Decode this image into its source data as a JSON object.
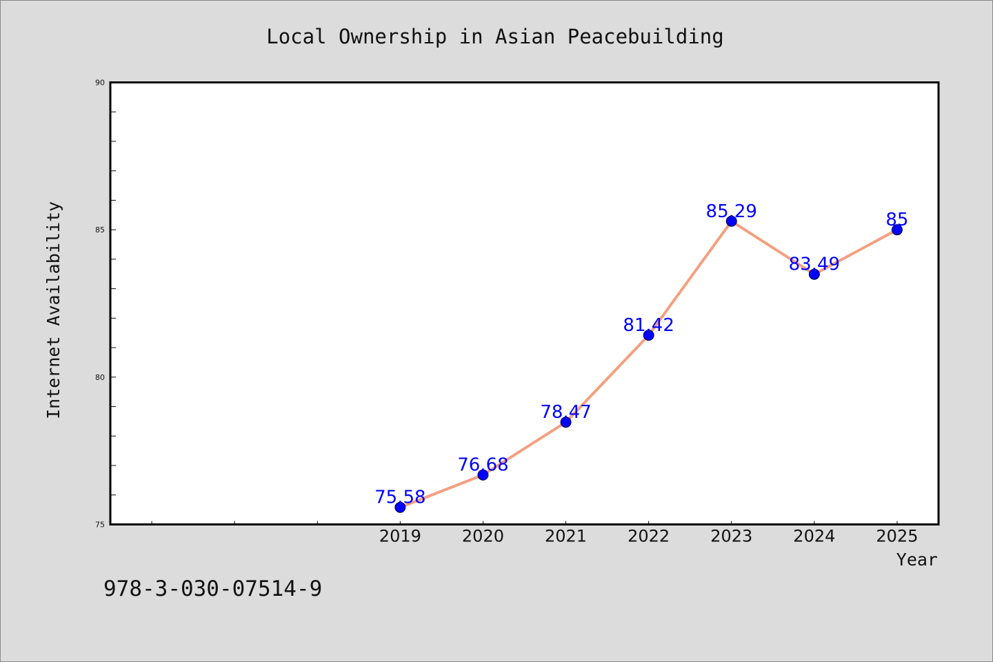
{
  "chart_data": {
    "type": "line",
    "title": "Local Ownership in Asian Peacebuilding",
    "xlabel": "Year",
    "ylabel": "Internet Availability",
    "x": [
      2019,
      2020,
      2021,
      2022,
      2023,
      2024,
      2025
    ],
    "y": [
      75.58,
      76.68,
      78.47,
      81.42,
      85.29,
      83.49,
      85
    ],
    "data_labels": [
      "75.58",
      "76.68",
      "78.47",
      "81.42",
      "85.29",
      "83.49",
      "85"
    ],
    "x_ticks": [
      "2019",
      "2020",
      "2021",
      "2022",
      "2023",
      "2024",
      "2025"
    ],
    "y_ticks": [
      "75",
      "80",
      "85",
      "90"
    ],
    "xlim": [
      2015.5,
      2025.5
    ],
    "ylim": [
      75,
      90
    ],
    "grid": false,
    "legend": "none",
    "line_color": "#f4a081",
    "marker_color": "#0000ff",
    "label_color": "#0000ff",
    "background_color": "#dcdcdc",
    "plot_background_color": "#ffffff"
  },
  "footer_text": "978-3-030-07514-9"
}
